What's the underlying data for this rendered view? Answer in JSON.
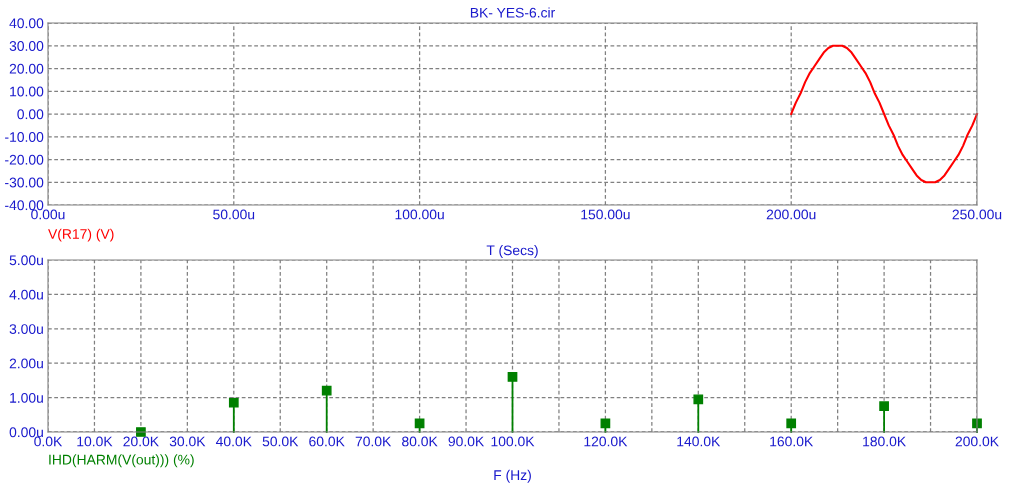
{
  "chart_data": [
    {
      "type": "line",
      "title": "BK- YES-6.cir",
      "xlabel": "T (Secs)",
      "x": [
        200,
        201.25,
        202.5,
        203.75,
        205,
        206.25,
        207.5,
        208.75,
        210,
        211.25,
        212.5,
        213.75,
        215,
        216.25,
        217.5,
        218.75,
        220,
        221.25,
        222.5,
        223.75,
        225,
        226.25,
        227.5,
        228.75,
        230,
        231.25,
        232.5,
        233.75,
        235,
        236.25,
        237.5,
        238.75,
        240,
        241.25,
        242.5,
        243.75,
        245,
        246.25,
        247.5,
        248.75,
        250
      ],
      "series": [
        {
          "name": "V(R17) (V)",
          "color": "#ff0000",
          "values": [
            0,
            5,
            9,
            14,
            18,
            21,
            24,
            27,
            29,
            30,
            30,
            30,
            29,
            27,
            24,
            21,
            18,
            14,
            9,
            5,
            0,
            -5,
            -9,
            -14,
            -18,
            -21,
            -24,
            -27,
            -29,
            -30,
            -30,
            -30,
            -29,
            -27,
            -24,
            -21,
            -18,
            -14,
            -9,
            -5,
            0
          ]
        }
      ],
      "xlim": [
        0,
        250
      ],
      "xticks": [
        {
          "value": 0,
          "label": "0.00u"
        },
        {
          "value": 50,
          "label": "50.00u"
        },
        {
          "value": 100,
          "label": "100.00u"
        },
        {
          "value": 150,
          "label": "150.00u"
        },
        {
          "value": 200,
          "label": "200.00u"
        },
        {
          "value": 250,
          "label": "250.00u"
        }
      ],
      "ylim": [
        -40,
        40
      ],
      "yticks": [
        {
          "value": -40,
          "label": "-40.00"
        },
        {
          "value": -30,
          "label": "-30.00"
        },
        {
          "value": -20,
          "label": "-20.00"
        },
        {
          "value": -10,
          "label": "-10.00"
        },
        {
          "value": 0,
          "label": "0.00"
        },
        {
          "value": 10,
          "label": "10.00"
        },
        {
          "value": 20,
          "label": "20.00"
        },
        {
          "value": 30,
          "label": "30.00"
        },
        {
          "value": 40,
          "label": "40.00"
        }
      ],
      "grid": true,
      "marker": "none",
      "line_style": "solid"
    },
    {
      "type": "lollipop",
      "xlabel": "F (Hz)",
      "x": [
        20000,
        40000,
        60000,
        80000,
        100000,
        120000,
        140000,
        160000,
        180000,
        200000
      ],
      "series": [
        {
          "name": "IHD(HARM(V(out))) (%)",
          "color": "#008000",
          "values": [
            0.0,
            0.85,
            1.2,
            0.25,
            1.6,
            0.25,
            0.95,
            0.25,
            0.75,
            0.25
          ]
        }
      ],
      "xlim": [
        0,
        200000
      ],
      "xticks": [
        {
          "value": 0,
          "label": "0.0K"
        },
        {
          "value": 10000,
          "label": "10.0K"
        },
        {
          "value": 20000,
          "label": "20.0K"
        },
        {
          "value": 30000,
          "label": "30.0K"
        },
        {
          "value": 40000,
          "label": "40.0K"
        },
        {
          "value": 50000,
          "label": "50.0K"
        },
        {
          "value": 60000,
          "label": "60.0K"
        },
        {
          "value": 70000,
          "label": "70.0K"
        },
        {
          "value": 80000,
          "label": "80.0K"
        },
        {
          "value": 90000,
          "label": "90.0K"
        },
        {
          "value": 100000,
          "label": "100.0K"
        },
        {
          "value": 110000,
          "label": null
        },
        {
          "value": 120000,
          "label": "120.0K"
        },
        {
          "value": 130000,
          "label": null
        },
        {
          "value": 140000,
          "label": "140.0K"
        },
        {
          "value": 150000,
          "label": null
        },
        {
          "value": 160000,
          "label": "160.0K"
        },
        {
          "value": 170000,
          "label": null
        },
        {
          "value": 180000,
          "label": "180.0K"
        },
        {
          "value": 190000,
          "label": null
        },
        {
          "value": 200000,
          "label": "200.0K"
        }
      ],
      "ylim": [
        0,
        5
      ],
      "yticks": [
        {
          "value": 0,
          "label": "0.00u"
        },
        {
          "value": 1,
          "label": "1.00u"
        },
        {
          "value": 2,
          "label": "2.00u"
        },
        {
          "value": 3,
          "label": "3.00u"
        },
        {
          "value": 4,
          "label": "4.00u"
        },
        {
          "value": 5,
          "label": "5.00u"
        }
      ],
      "grid": true,
      "marker": "square"
    }
  ]
}
